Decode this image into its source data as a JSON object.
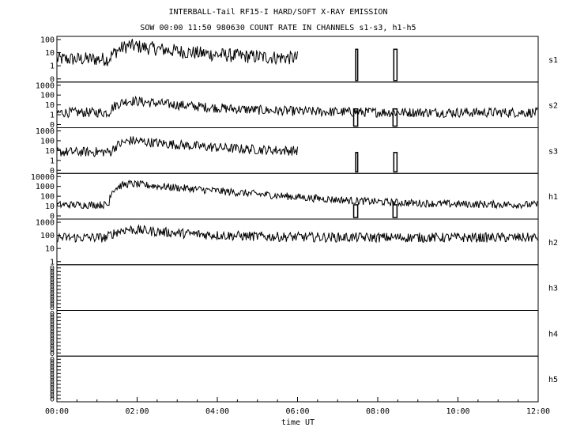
{
  "chart_data": {
    "type": "line",
    "title": "INTERBALL-Tail RF15-I HARD/SOFT X-RAY EMISSION",
    "subtitle": "SOW 00:00 11:50 980630  COUNT RATE IN CHANNELS s1-s3, h1-h5",
    "xlabel": "time UT",
    "x_ticks": [
      "00:00",
      "02:00",
      "04:00",
      "06:00",
      "08:00",
      "10:00",
      "12:00"
    ],
    "x_range_hours": [
      0,
      12
    ],
    "grid": false,
    "panels": [
      {
        "name": "s1",
        "y_ticks": [
          "100",
          "10",
          "1",
          "0"
        ],
        "y_range_log": [
          0.5,
          100
        ],
        "baseline": 8,
        "peak": {
          "x": 1.8,
          "y": 50
        },
        "data_end": 6.0,
        "bursts": [
          [
            7.45,
            7.5,
            30
          ],
          [
            8.4,
            8.48,
            30
          ]
        ]
      },
      {
        "name": "s2",
        "y_ticks": [
          "1000",
          "100",
          "10",
          "1",
          "0"
        ],
        "y_range_log": [
          0.5,
          1000
        ],
        "baseline": 6,
        "peak": {
          "x": 1.8,
          "y": 60
        },
        "data_end": 12.0,
        "bursts": [
          [
            7.4,
            7.5,
            12
          ],
          [
            8.38,
            8.48,
            12
          ]
        ]
      },
      {
        "name": "s3",
        "y_ticks": [
          "1000",
          "100",
          "10",
          "1",
          "0"
        ],
        "y_range_log": [
          0.5,
          1000
        ],
        "baseline": 20,
        "peak": {
          "x": 1.85,
          "y": 180
        },
        "data_end": 6.0,
        "bursts": [
          [
            7.45,
            7.5,
            18
          ],
          [
            8.4,
            8.48,
            18
          ]
        ]
      },
      {
        "name": "h1",
        "y_ticks": [
          "10000",
          "1000",
          "100",
          "10",
          "0"
        ],
        "y_range_log": [
          0.5,
          10000
        ],
        "baseline": 10,
        "peak": {
          "x": 1.8,
          "y": 2000
        },
        "data_end": 12.0,
        "bursts": [
          [
            7.4,
            7.5,
            10
          ],
          [
            8.38,
            8.48,
            10
          ]
        ]
      },
      {
        "name": "h2",
        "y_ticks": [
          "1000",
          "100",
          "10",
          "1"
        ],
        "y_range_log": [
          0.5,
          1000
        ],
        "baseline": 60,
        "peak": {
          "x": 1.75,
          "y": 300
        },
        "data_end": 12.0,
        "bursts": []
      },
      {
        "name": "h3",
        "y_ticks": [
          "0",
          "0",
          "0",
          "0",
          "0",
          "0",
          "0",
          "0",
          "0",
          "0",
          "0",
          "0"
        ]
      },
      {
        "name": "h4",
        "y_ticks": [
          "0",
          "0",
          "0",
          "0",
          "0",
          "0",
          "0",
          "0",
          "0",
          "0",
          "0",
          "0"
        ]
      },
      {
        "name": "h5",
        "y_ticks": [
          "0",
          "0",
          "0",
          "0",
          "0",
          "0",
          "0",
          "0",
          "0",
          "0",
          "0",
          "0"
        ]
      }
    ]
  }
}
